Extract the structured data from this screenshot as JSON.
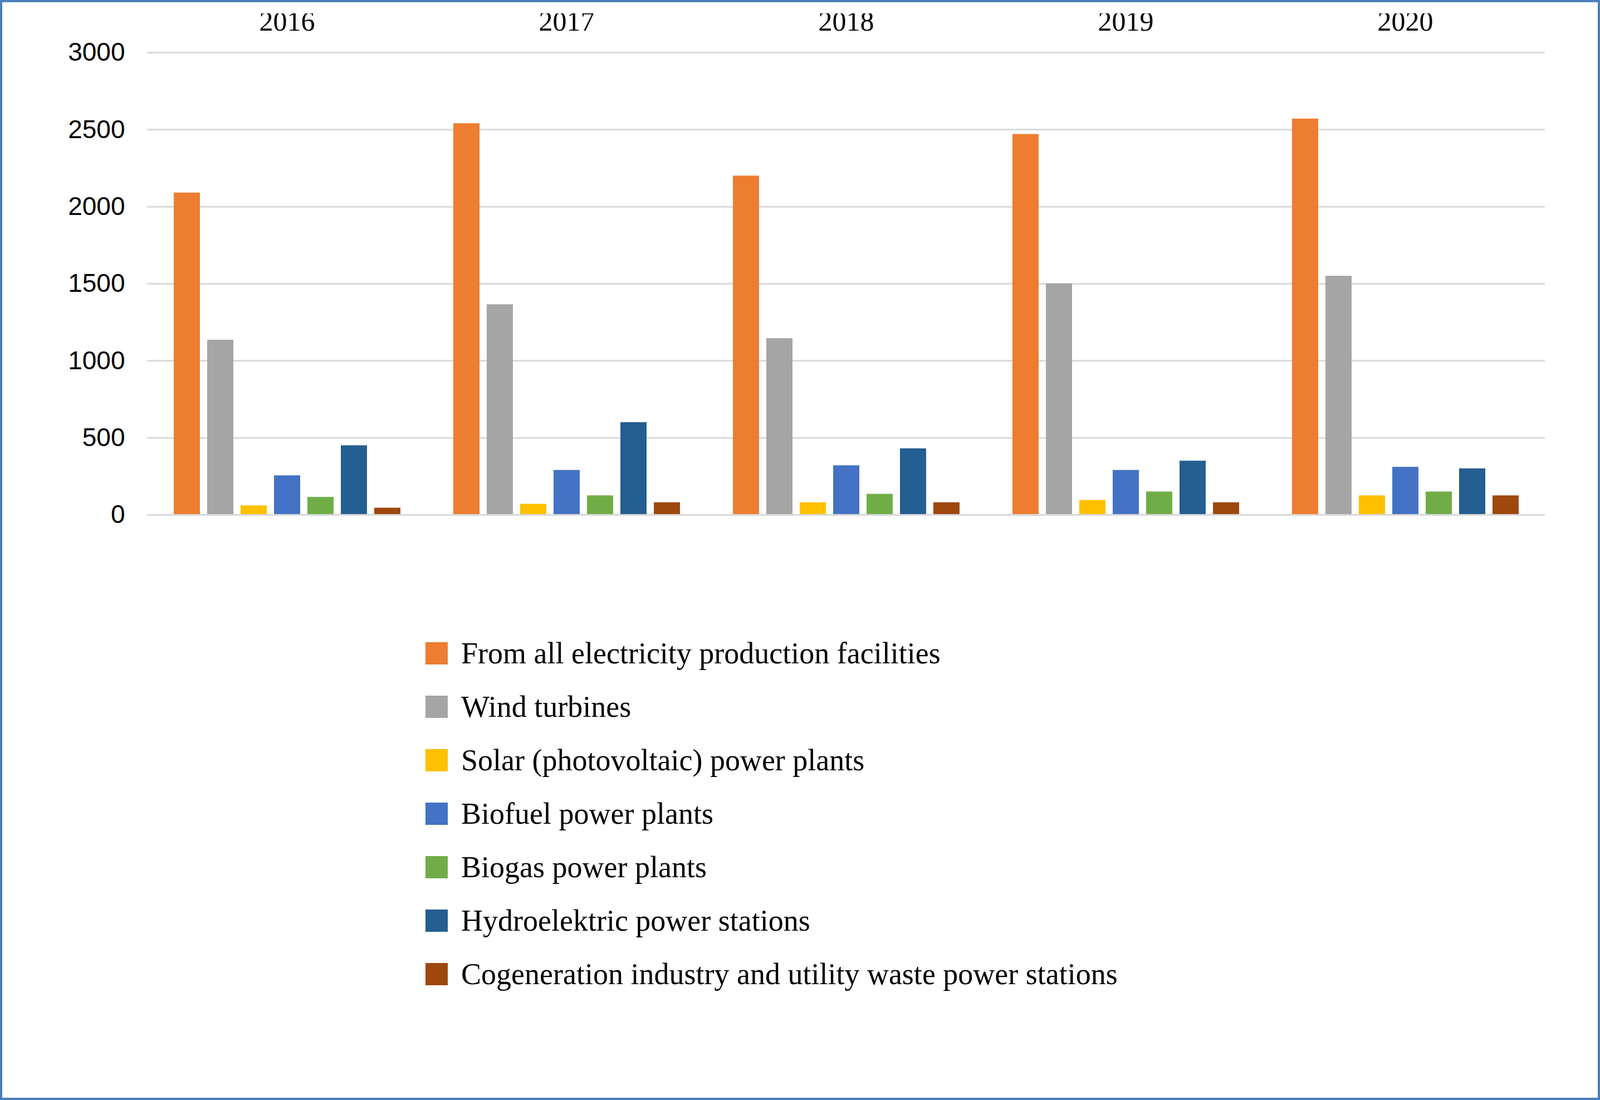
{
  "chart_data": {
    "type": "bar",
    "categories": [
      "2016",
      "2017",
      "2018",
      "2019",
      "2020"
    ],
    "series": [
      {
        "name": "From all electricity production facilities",
        "color": "#ED7D31",
        "values": [
          2090,
          2540,
          2200,
          2470,
          2570
        ]
      },
      {
        "name": "Wind turbines",
        "color": "#A5A5A5",
        "values": [
          1135,
          1365,
          1145,
          1500,
          1550
        ]
      },
      {
        "name": "Solar (photovoltaic) power plants",
        "color": "#FFC000",
        "values": [
          60,
          70,
          80,
          95,
          125
        ]
      },
      {
        "name": "Biofuel power plants",
        "color": "#4472C4",
        "values": [
          255,
          290,
          320,
          290,
          310
        ]
      },
      {
        "name": "Biogas power plants",
        "color": "#70AD47",
        "values": [
          115,
          125,
          135,
          150,
          150
        ]
      },
      {
        "name": "Hydroelektric power stations",
        "color": "#255E91",
        "values": [
          450,
          600,
          430,
          350,
          300
        ]
      },
      {
        "name": "Cogeneration industry and utility waste power stations",
        "color": "#9E480E",
        "values": [
          45,
          80,
          80,
          80,
          125
        ]
      }
    ],
    "ylim": [
      0,
      3000
    ],
    "yticks": [
      0,
      500,
      1000,
      1500,
      2000,
      2500,
      3000
    ],
    "grid": true,
    "legend": "bottom"
  }
}
